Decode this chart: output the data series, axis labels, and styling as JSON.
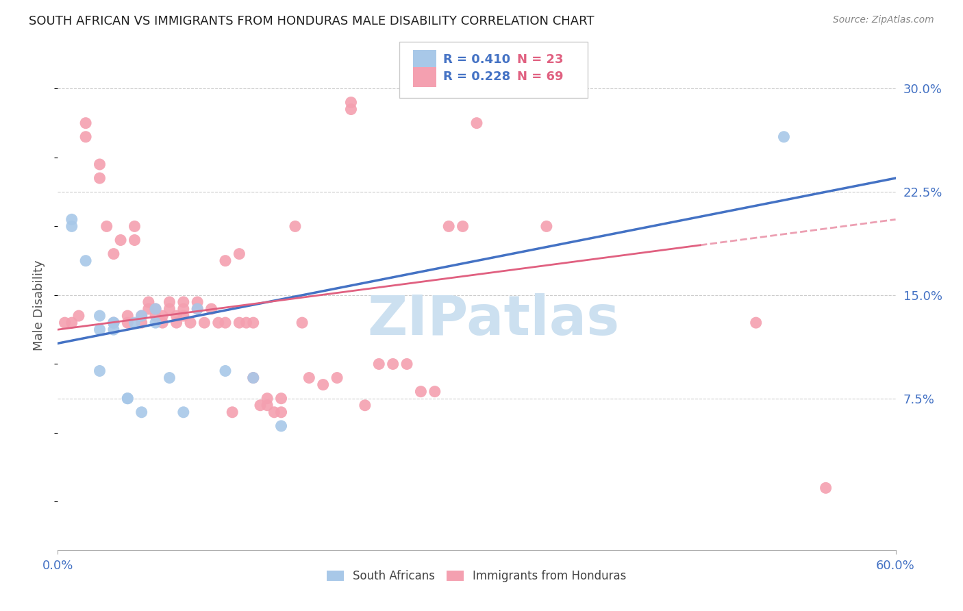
{
  "title": "SOUTH AFRICAN VS IMMIGRANTS FROM HONDURAS MALE DISABILITY CORRELATION CHART",
  "source": "Source: ZipAtlas.com",
  "ylabel": "Male Disability",
  "yticks": [
    0.0,
    0.075,
    0.15,
    0.225,
    0.3
  ],
  "ytick_labels": [
    "",
    "7.5%",
    "15.0%",
    "22.5%",
    "30.0%"
  ],
  "xtick_vals": [
    0.0,
    0.6
  ],
  "xtick_labels": [
    "0.0%",
    "60.0%"
  ],
  "xmin": 0.0,
  "xmax": 0.6,
  "ymin": -0.035,
  "ymax": 0.32,
  "blue_color": "#a8c8e8",
  "pink_color": "#f4a0b0",
  "blue_line_color": "#4472C4",
  "pink_line_color": "#e06080",
  "axis_color": "#4472C4",
  "grid_color": "#cccccc",
  "title_color": "#222222",
  "source_color": "#888888",
  "blue_scatter_x": [
    0.01,
    0.01,
    0.02,
    0.03,
    0.03,
    0.03,
    0.04,
    0.04,
    0.04,
    0.05,
    0.05,
    0.055,
    0.06,
    0.06,
    0.07,
    0.07,
    0.08,
    0.09,
    0.1,
    0.12,
    0.14,
    0.16,
    0.52
  ],
  "blue_scatter_y": [
    0.2,
    0.205,
    0.175,
    0.135,
    0.125,
    0.095,
    0.13,
    0.13,
    0.125,
    0.075,
    0.075,
    0.13,
    0.065,
    0.135,
    0.13,
    0.14,
    0.09,
    0.065,
    0.14,
    0.095,
    0.09,
    0.055,
    0.265
  ],
  "pink_scatter_x": [
    0.005,
    0.01,
    0.015,
    0.02,
    0.02,
    0.03,
    0.03,
    0.035,
    0.04,
    0.04,
    0.045,
    0.05,
    0.05,
    0.055,
    0.055,
    0.06,
    0.06,
    0.065,
    0.065,
    0.07,
    0.07,
    0.075,
    0.075,
    0.08,
    0.08,
    0.085,
    0.085,
    0.09,
    0.09,
    0.09,
    0.095,
    0.1,
    0.1,
    0.105,
    0.11,
    0.115,
    0.12,
    0.12,
    0.125,
    0.13,
    0.13,
    0.135,
    0.14,
    0.14,
    0.145,
    0.15,
    0.15,
    0.155,
    0.16,
    0.16,
    0.17,
    0.175,
    0.18,
    0.19,
    0.2,
    0.21,
    0.21,
    0.22,
    0.23,
    0.24,
    0.25,
    0.26,
    0.27,
    0.28,
    0.29,
    0.3,
    0.35,
    0.5,
    0.55
  ],
  "pink_scatter_y": [
    0.13,
    0.13,
    0.135,
    0.265,
    0.275,
    0.235,
    0.245,
    0.2,
    0.18,
    0.13,
    0.19,
    0.13,
    0.135,
    0.2,
    0.19,
    0.135,
    0.13,
    0.14,
    0.145,
    0.14,
    0.135,
    0.135,
    0.13,
    0.145,
    0.14,
    0.135,
    0.13,
    0.145,
    0.14,
    0.135,
    0.13,
    0.145,
    0.14,
    0.13,
    0.14,
    0.13,
    0.175,
    0.13,
    0.065,
    0.18,
    0.13,
    0.13,
    0.13,
    0.09,
    0.07,
    0.075,
    0.07,
    0.065,
    0.075,
    0.065,
    0.2,
    0.13,
    0.09,
    0.085,
    0.09,
    0.285,
    0.29,
    0.07,
    0.1,
    0.1,
    0.1,
    0.08,
    0.08,
    0.2,
    0.2,
    0.275,
    0.2,
    0.13,
    0.01
  ],
  "watermark": "ZIPatlas",
  "watermark_color": "#cce0f0",
  "legend_R_color": "#4472C4",
  "legend_N_color": "#e06080"
}
